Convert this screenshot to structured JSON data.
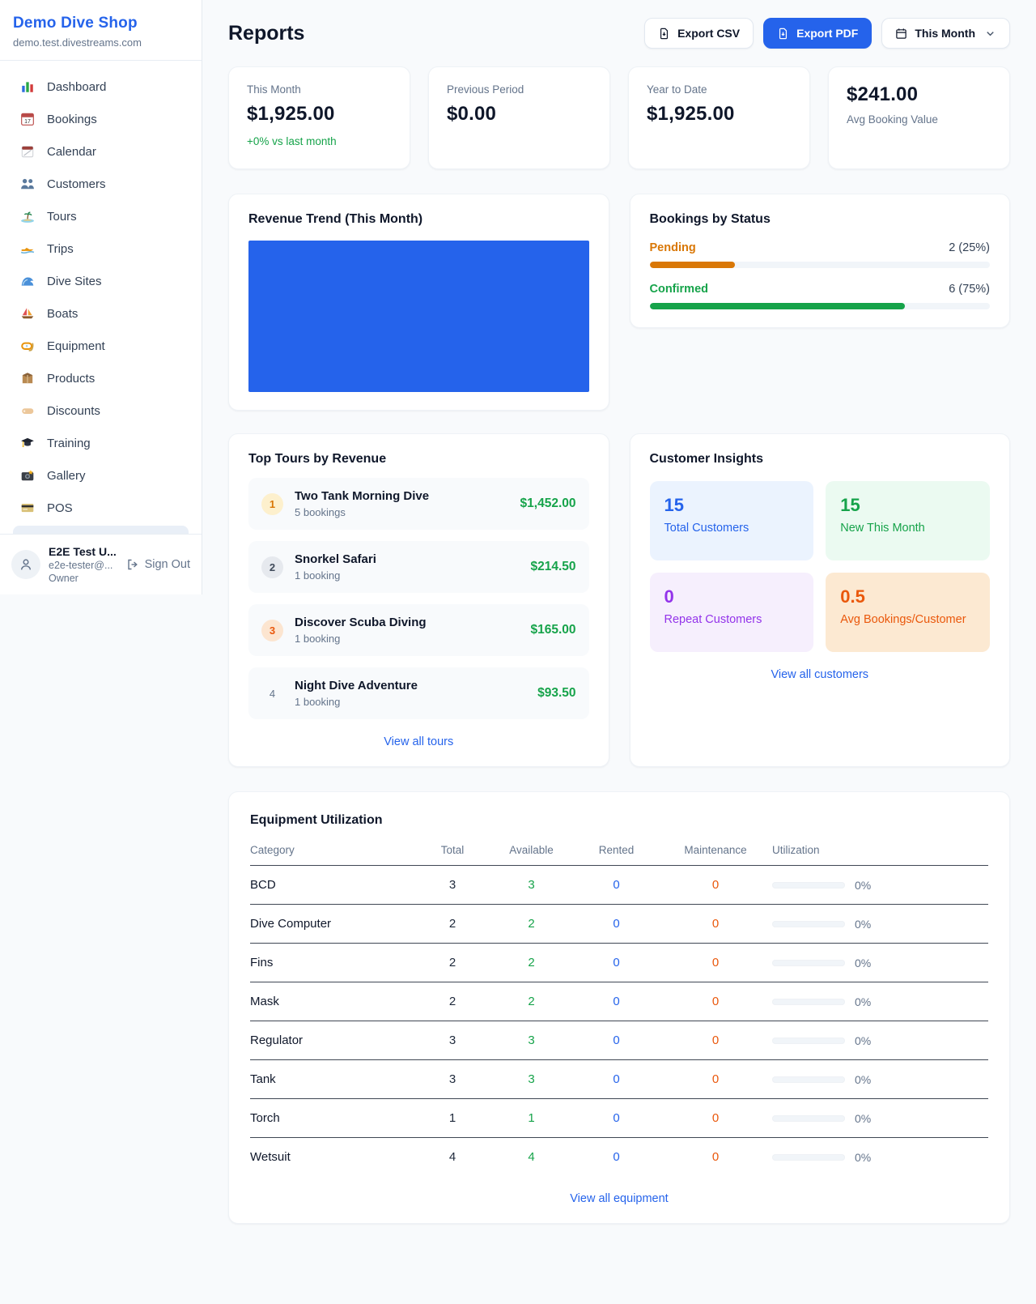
{
  "colors": {
    "accent_blue": "#2563eb",
    "green": "#16a34a",
    "amber": "#d97706",
    "orange": "#ea580c",
    "purple": "#9333ea"
  },
  "sidebar": {
    "shop_name": "Demo Dive Shop",
    "domain": "demo.test.divestreams.com",
    "nav": [
      {
        "icon": "bar-chart-icon",
        "label": "Dashboard"
      },
      {
        "icon": "calendar-date-icon",
        "label": "Bookings"
      },
      {
        "icon": "tear-off-calendar-icon",
        "label": "Calendar"
      },
      {
        "icon": "people-icon",
        "label": "Customers"
      },
      {
        "icon": "island-icon",
        "label": "Tours"
      },
      {
        "icon": "speedboat-icon",
        "label": "Trips"
      },
      {
        "icon": "wave-icon",
        "label": "Dive Sites"
      },
      {
        "icon": "sailboat-icon",
        "label": "Boats"
      },
      {
        "icon": "dive-mask-icon",
        "label": "Equipment"
      },
      {
        "icon": "package-icon",
        "label": "Products"
      },
      {
        "icon": "tag-icon",
        "label": "Discounts"
      },
      {
        "icon": "graduation-cap-icon",
        "label": "Training"
      },
      {
        "icon": "camera-icon",
        "label": "Gallery"
      },
      {
        "icon": "credit-card-icon",
        "label": "POS"
      }
    ],
    "user": {
      "name": "E2E Test U...",
      "email": "e2e-tester@...",
      "role": "Owner",
      "sign_out_label": "Sign Out"
    }
  },
  "header": {
    "title": "Reports",
    "export_csv_label": "Export CSV",
    "export_pdf_label": "Export PDF",
    "period_label": "This Month"
  },
  "stats": [
    {
      "label": "This Month",
      "value": "$1,925.00",
      "delta": "+0% vs last month"
    },
    {
      "label": "Previous Period",
      "value": "$0.00"
    },
    {
      "label": "Year to Date",
      "value": "$1,925.00"
    },
    {
      "label": "Avg Booking Value",
      "value": "$241.00"
    }
  ],
  "revenue_trend": {
    "title": "Revenue Trend (This Month)",
    "chart_data": {
      "type": "bar",
      "categories": [
        "This Month"
      ],
      "values": [
        1925
      ],
      "bar_color": "#2563eb",
      "axes_visible": false,
      "note": "single bar fills the entire plot area, no axis labels shown"
    }
  },
  "bookings_by_status": {
    "title": "Bookings by Status",
    "chart_data": {
      "type": "bar",
      "categories": [
        "Pending",
        "Confirmed"
      ],
      "values": [
        2,
        6
      ],
      "percentages": [
        25,
        75
      ]
    },
    "items": [
      {
        "label": "Pending",
        "count_text": "2 (25%)",
        "percent": 25
      },
      {
        "label": "Confirmed",
        "count_text": "6 (75%)",
        "percent": 75
      }
    ]
  },
  "top_tours": {
    "title": "Top Tours by Revenue",
    "items": [
      {
        "rank": "1",
        "name": "Two Tank Morning Dive",
        "bookings": "5 bookings",
        "revenue": "$1,452.00"
      },
      {
        "rank": "2",
        "name": "Snorkel Safari",
        "bookings": "1 booking",
        "revenue": "$214.50"
      },
      {
        "rank": "3",
        "name": "Discover Scuba Diving",
        "bookings": "1 booking",
        "revenue": "$165.00"
      },
      {
        "rank": "4",
        "name": "Night Dive Adventure",
        "bookings": "1 booking",
        "revenue": "$93.50"
      }
    ],
    "view_all_label": "View all tours"
  },
  "customer_insights": {
    "title": "Customer Insights",
    "tiles": [
      {
        "value": "15",
        "label": "Total Customers",
        "theme": "blue"
      },
      {
        "value": "15",
        "label": "New This Month",
        "theme": "green"
      },
      {
        "value": "0",
        "label": "Repeat Customers",
        "theme": "purple"
      },
      {
        "value": "0.5",
        "label": "Avg Bookings/Customer",
        "theme": "orange"
      }
    ],
    "view_all_label": "View all customers"
  },
  "equipment": {
    "title": "Equipment Utilization",
    "headers": [
      "Category",
      "Total",
      "Available",
      "Rented",
      "Maintenance",
      "Utilization"
    ],
    "rows": [
      {
        "category": "BCD",
        "total": "3",
        "available": "3",
        "rented": "0",
        "maintenance": "0",
        "utilization": "0%",
        "utilization_percent": 0
      },
      {
        "category": "Dive Computer",
        "total": "2",
        "available": "2",
        "rented": "0",
        "maintenance": "0",
        "utilization": "0%",
        "utilization_percent": 0
      },
      {
        "category": "Fins",
        "total": "2",
        "available": "2",
        "rented": "0",
        "maintenance": "0",
        "utilization": "0%",
        "utilization_percent": 0
      },
      {
        "category": "Mask",
        "total": "2",
        "available": "2",
        "rented": "0",
        "maintenance": "0",
        "utilization": "0%",
        "utilization_percent": 0
      },
      {
        "category": "Regulator",
        "total": "3",
        "available": "3",
        "rented": "0",
        "maintenance": "0",
        "utilization": "0%",
        "utilization_percent": 0
      },
      {
        "category": "Tank",
        "total": "3",
        "available": "3",
        "rented": "0",
        "maintenance": "0",
        "utilization": "0%",
        "utilization_percent": 0
      },
      {
        "category": "Torch",
        "total": "1",
        "available": "1",
        "rented": "0",
        "maintenance": "0",
        "utilization": "0%",
        "utilization_percent": 0
      },
      {
        "category": "Wetsuit",
        "total": "4",
        "available": "4",
        "rented": "0",
        "maintenance": "0",
        "utilization": "0%",
        "utilization_percent": 0
      }
    ],
    "view_all_label": "View all equipment"
  }
}
